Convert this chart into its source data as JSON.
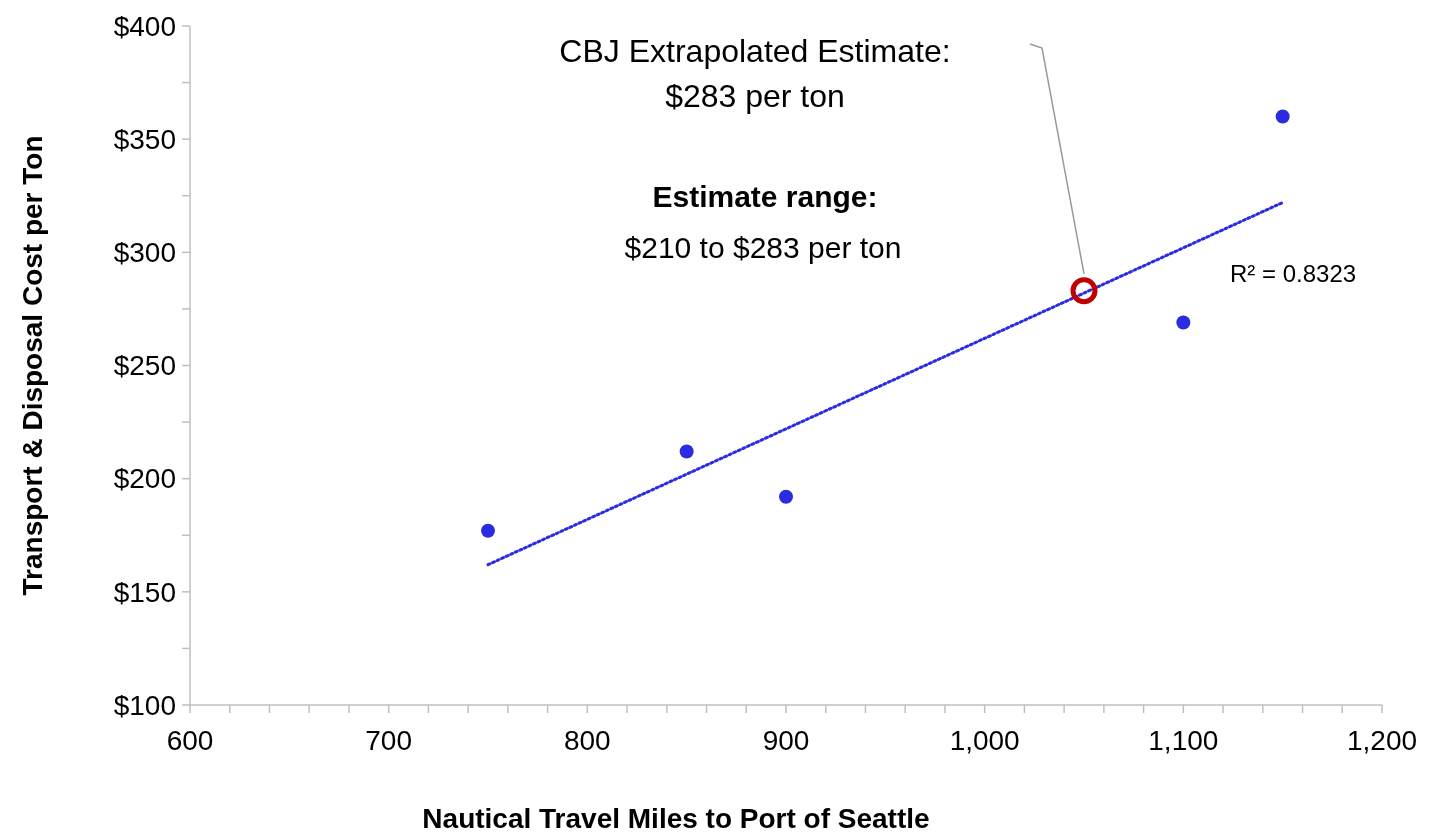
{
  "chart_data": {
    "type": "scatter",
    "xlabel": "Nautical Travel Miles to Port of Seattle",
    "ylabel": "Transport & Disposal Cost per Ton",
    "xlim": [
      600,
      1200
    ],
    "ylim": [
      100,
      400
    ],
    "xticks": [
      {
        "value": 600,
        "label": "600"
      },
      {
        "value": 620,
        "label": null
      },
      {
        "value": 640,
        "label": null
      },
      {
        "value": 660,
        "label": null
      },
      {
        "value": 680,
        "label": null
      },
      {
        "value": 700,
        "label": "700"
      },
      {
        "value": 720,
        "label": null
      },
      {
        "value": 740,
        "label": null
      },
      {
        "value": 760,
        "label": null
      },
      {
        "value": 780,
        "label": null
      },
      {
        "value": 800,
        "label": "800"
      },
      {
        "value": 820,
        "label": null
      },
      {
        "value": 840,
        "label": null
      },
      {
        "value": 860,
        "label": null
      },
      {
        "value": 880,
        "label": null
      },
      {
        "value": 900,
        "label": "900"
      },
      {
        "value": 920,
        "label": null
      },
      {
        "value": 940,
        "label": null
      },
      {
        "value": 960,
        "label": null
      },
      {
        "value": 980,
        "label": null
      },
      {
        "value": 1000,
        "label": "1,000"
      },
      {
        "value": 1020,
        "label": null
      },
      {
        "value": 1040,
        "label": null
      },
      {
        "value": 1060,
        "label": null
      },
      {
        "value": 1080,
        "label": null
      },
      {
        "value": 1100,
        "label": "1,100"
      },
      {
        "value": 1120,
        "label": null
      },
      {
        "value": 1140,
        "label": null
      },
      {
        "value": 1160,
        "label": null
      },
      {
        "value": 1180,
        "label": null
      },
      {
        "value": 1200,
        "label": "1,200"
      }
    ],
    "yticks": [
      {
        "value": 100,
        "label": "$100"
      },
      {
        "value": 125,
        "label": null
      },
      {
        "value": 150,
        "label": "$150"
      },
      {
        "value": 175,
        "label": null
      },
      {
        "value": 200,
        "label": "$200"
      },
      {
        "value": 225,
        "label": null
      },
      {
        "value": 250,
        "label": "$250"
      },
      {
        "value": 275,
        "label": null
      },
      {
        "value": 300,
        "label": "$300"
      },
      {
        "value": 325,
        "label": null
      },
      {
        "value": 350,
        "label": "$350"
      },
      {
        "value": 375,
        "label": null
      },
      {
        "value": 400,
        "label": "$400"
      }
    ],
    "grid": false,
    "series": [
      {
        "type": "line",
        "color": "#2b2be0",
        "line_style": "dotted",
        "marker": "none",
        "x": [
          750,
          1150
        ],
        "values": [
          162,
          322
        ]
      },
      {
        "color": "#2b2be0",
        "marker": "circle",
        "x": [
          750,
          850,
          900,
          1100,
          1150
        ],
        "values": [
          177,
          212,
          192,
          269,
          360
        ]
      },
      {
        "color": "#c00000",
        "marker": "circle",
        "x": [
          1050
        ],
        "values": [
          283
        ]
      }
    ],
    "annotations": [
      "CBJ Extrapolated Estimate:\n$283 per ton",
      "Estimate range:",
      "$210 to $283 per ton",
      "R² = 0.8323"
    ]
  }
}
